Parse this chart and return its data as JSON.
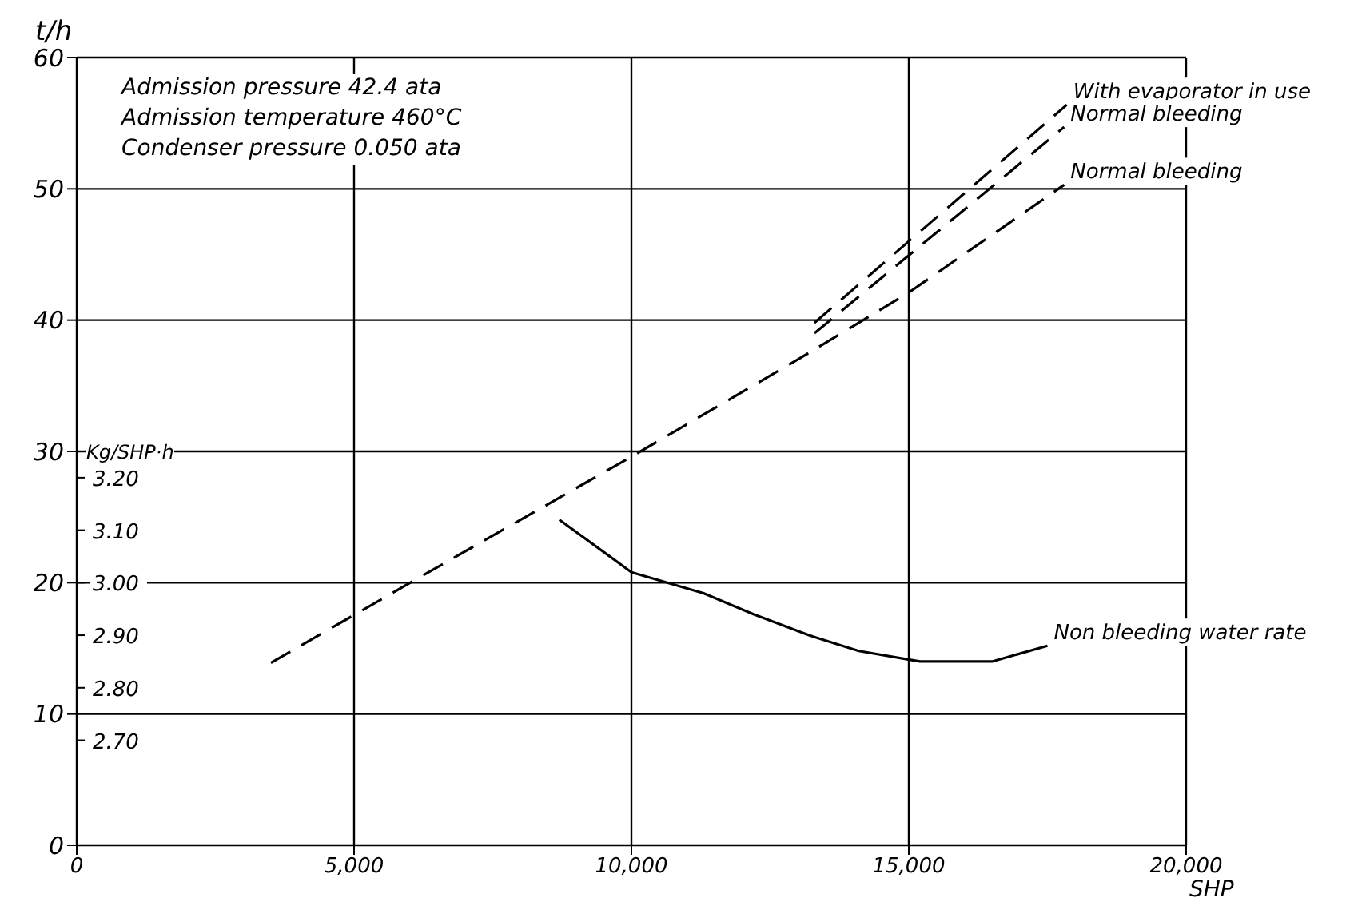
{
  "chart_data": {
    "type": "line",
    "ylabel": "t/h",
    "xlabel": "SHP",
    "y2label": "Kg/SHP·h",
    "annotations": [
      "Admission pressure 42.4 ata",
      "Admission temperature 460°C",
      "Condenser pressure 0.050 ata"
    ],
    "xlim": [
      0,
      20000
    ],
    "xticks": [
      0,
      {
        "value": 5000,
        "label": "5,000"
      },
      {
        "value": 10000,
        "label": "10,000"
      },
      {
        "value": 15000,
        "label": "15,000"
      },
      {
        "value": 20000,
        "label": "20,000"
      }
    ],
    "ylim": [
      0,
      60
    ],
    "yticks": [
      0,
      10,
      20,
      30,
      40,
      50,
      60
    ],
    "y2lim": [
      2.5,
      4.0
    ],
    "y2ticks": [
      {
        "value": 2.7,
        "label": "2.70"
      },
      {
        "value": 2.8,
        "label": "2.80"
      },
      {
        "value": 2.9,
        "label": "2.90"
      },
      {
        "value": 3.0,
        "label": "3.00"
      },
      {
        "value": 3.1,
        "label": "3.10"
      },
      {
        "value": 3.2,
        "label": "3.20"
      }
    ],
    "grid": true,
    "legend": false,
    "marker": "none",
    "series": [
      {
        "name": "With evaporator in use",
        "color": "#000000",
        "line_style": "dashed",
        "x": [
          13300,
          17850
        ],
        "values": [
          39.8,
          56.4
        ]
      },
      {
        "name": "Normal bleeding",
        "color": "#000000",
        "line_style": "dashed",
        "x": [
          13300,
          17800
        ],
        "values": [
          39.0,
          54.7
        ]
      },
      {
        "name": "Normal bleeding",
        "color": "#000000",
        "line_style": "dashed",
        "x": [
          3500,
          6300,
          10000,
          13000,
          15000,
          17800
        ],
        "values": [
          13.9,
          20.7,
          29.6,
          37.0,
          42.1,
          50.3
        ]
      },
      {
        "name": "Non bleeding water rate",
        "color": "#000000",
        "line_style": "solid",
        "axis": "y2",
        "x": [
          8700,
          10000,
          11300,
          12200,
          13200,
          14100,
          15200,
          16500,
          17500
        ],
        "values": [
          3.12,
          3.02,
          2.98,
          2.94,
          2.9,
          2.87,
          2.85,
          2.85,
          2.88
        ]
      }
    ]
  }
}
